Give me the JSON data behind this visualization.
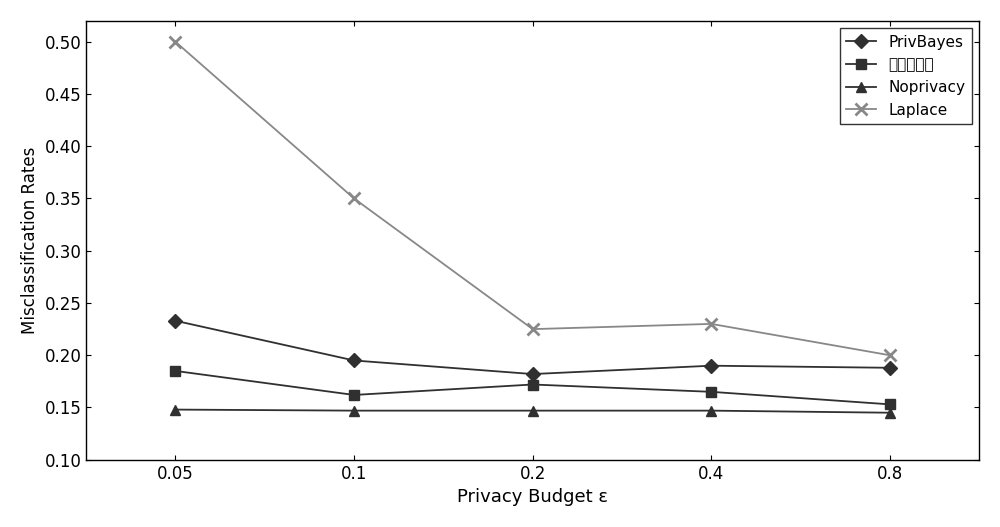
{
  "x_positions": [
    0,
    1,
    2,
    3,
    4
  ],
  "x_labels": [
    "0.05",
    "0.1",
    "0.2",
    "0.4",
    "0.8"
  ],
  "PrivBayes": [
    0.233,
    0.195,
    0.182,
    0.19,
    0.188
  ],
  "BenFaMingFaFa": [
    0.185,
    0.162,
    0.172,
    0.165,
    0.153
  ],
  "Noprivacy": [
    0.148,
    0.147,
    0.147,
    0.147,
    0.145
  ],
  "Laplace": [
    0.5,
    0.35,
    0.225,
    0.23,
    0.2
  ],
  "xlabel": "Privacy Budget ε",
  "ylabel": "Misclassification Rates",
  "ylim": [
    0.1,
    0.52
  ],
  "yticks": [
    0.1,
    0.15,
    0.2,
    0.25,
    0.3,
    0.35,
    0.4,
    0.45,
    0.5
  ],
  "legend_labels": [
    "PrivBayes",
    "本发明方法",
    "Noprivacy",
    "Laplace"
  ],
  "line_color": "#303030",
  "laplace_color": "#888888",
  "figsize": [
    10.0,
    5.27
  ],
  "dpi": 100
}
